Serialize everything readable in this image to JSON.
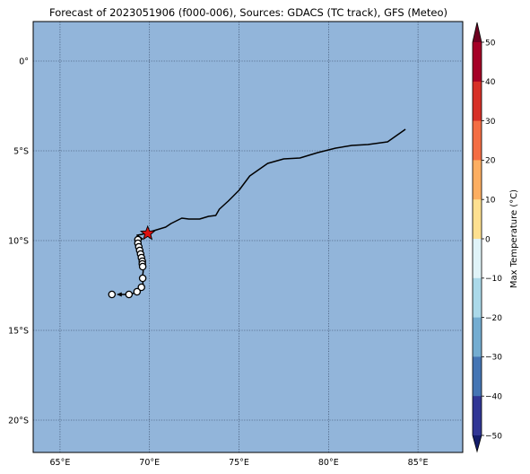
{
  "title": "Forecast of 2023051906 (f000-006), Sources: GDACS (TC track), GFS (Meteo)",
  "map": {
    "lon_range": [
      63.5,
      87.5
    ],
    "lat_range": [
      -21.8,
      2.2
    ],
    "ocean_color": "#92b5da",
    "grid": true,
    "lon_ticks": [
      65,
      70,
      75,
      80,
      85
    ],
    "lat_ticks": [
      0,
      -5,
      -10,
      -15,
      -20
    ],
    "lon_labels": [
      "65°E",
      "70°E",
      "75°E",
      "80°E",
      "85°E"
    ],
    "lat_labels": [
      "0°",
      "5°S",
      "10°S",
      "15°S",
      "20°S"
    ]
  },
  "track": {
    "line": [
      [
        84.3,
        -3.8
      ],
      [
        83.3,
        -4.5
      ],
      [
        82.2,
        -4.65
      ],
      [
        81.3,
        -4.7
      ],
      [
        80.4,
        -4.85
      ],
      [
        79.4,
        -5.1
      ],
      [
        78.4,
        -5.4
      ],
      [
        77.5,
        -5.45
      ],
      [
        76.6,
        -5.7
      ],
      [
        75.6,
        -6.4
      ],
      [
        75.0,
        -7.2
      ],
      [
        74.4,
        -7.8
      ],
      [
        73.9,
        -8.25
      ],
      [
        73.7,
        -8.6
      ],
      [
        73.3,
        -8.65
      ],
      [
        72.8,
        -8.8
      ],
      [
        72.2,
        -8.8
      ],
      [
        71.8,
        -8.75
      ],
      [
        71.2,
        -9.05
      ],
      [
        70.9,
        -9.25
      ],
      [
        70.4,
        -9.4
      ],
      [
        69.9,
        -9.55
      ],
      [
        69.6,
        -9.65
      ],
      [
        69.3,
        -9.7
      ],
      [
        69.6,
        -9.9
      ],
      [
        69.3,
        -10.0
      ],
      [
        69.3,
        -10.2
      ],
      [
        69.4,
        -10.4
      ],
      [
        69.5,
        -10.6
      ],
      [
        69.5,
        -10.85
      ],
      [
        69.6,
        -11.1
      ],
      [
        69.6,
        -11.4
      ],
      [
        69.65,
        -11.7
      ],
      [
        69.6,
        -12.1
      ],
      [
        69.65,
        -12.5
      ],
      [
        69.5,
        -12.75
      ],
      [
        69.2,
        -12.9
      ],
      [
        68.9,
        -13.0
      ],
      [
        68.4,
        -13.0
      ]
    ],
    "circles": [
      [
        69.35,
        -9.95
      ],
      [
        69.35,
        -10.15
      ],
      [
        69.4,
        -10.35
      ],
      [
        69.45,
        -10.55
      ],
      [
        69.5,
        -10.75
      ],
      [
        69.55,
        -10.95
      ],
      [
        69.6,
        -11.15
      ],
      [
        69.6,
        -11.3
      ],
      [
        69.62,
        -11.45
      ],
      [
        69.62,
        -12.1
      ],
      [
        69.55,
        -12.6
      ],
      [
        69.3,
        -12.85
      ],
      [
        68.85,
        -13.0
      ],
      [
        67.9,
        -13.0
      ]
    ],
    "storm_position": [
      69.9,
      -9.6
    ],
    "storm_marker_color": "#dd1111"
  },
  "colorbar": {
    "label": "Max Temperature (°C)",
    "ticks": [
      50,
      40,
      30,
      20,
      10,
      0,
      -10,
      -20,
      -30,
      -40,
      -50
    ],
    "tick_labels": [
      "50",
      "40",
      "30",
      "20",
      "10",
      "0",
      "−10",
      "−20",
      "−30",
      "−40",
      "−50"
    ],
    "colors": [
      "#a50026",
      "#d73027",
      "#f46d43",
      "#fdae61",
      "#fee090",
      "#e0f3f8",
      "#abd9e9",
      "#74add1",
      "#4575b4",
      "#313695"
    ],
    "extend_top_color": "#6e0021",
    "extend_bottom_color": "#141d6a"
  }
}
